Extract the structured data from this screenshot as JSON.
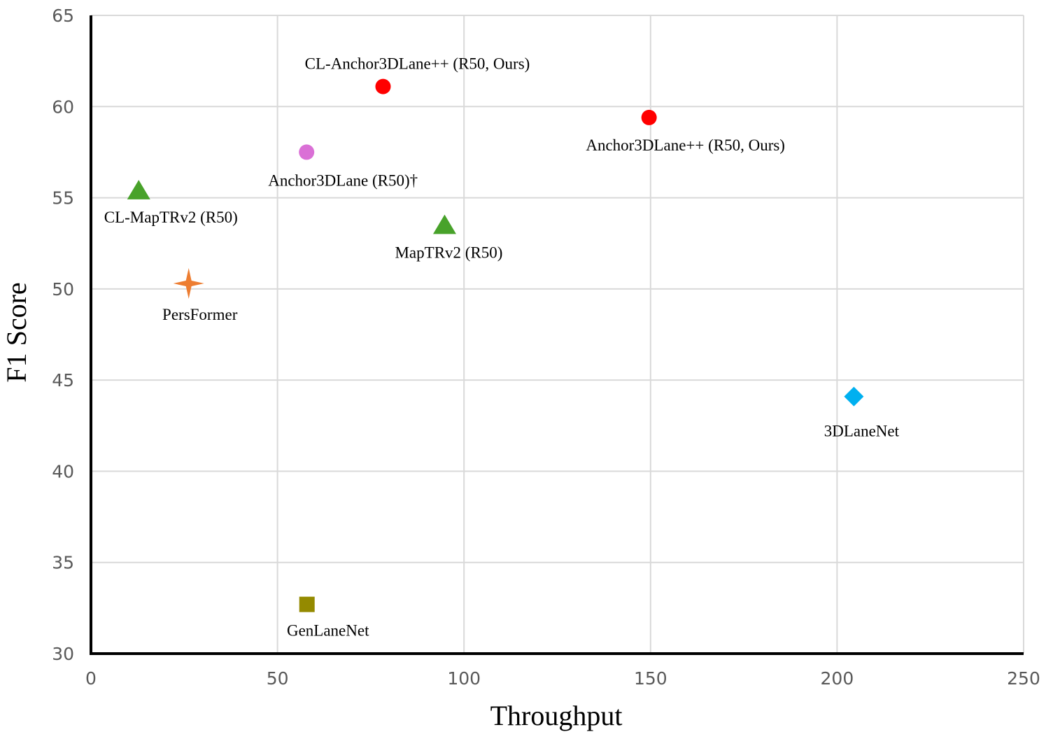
{
  "chart_data": {
    "type": "scatter",
    "title": "",
    "xlabel": "Throughput",
    "ylabel": "F1 Score",
    "xlim": [
      0,
      250
    ],
    "ylim": [
      30,
      65
    ],
    "xticks": [
      0,
      50,
      100,
      150,
      200,
      250
    ],
    "yticks": [
      30,
      35,
      40,
      45,
      50,
      55,
      60,
      65
    ],
    "grid": true,
    "points": [
      {
        "name": "CL-Anchor3DLane++ (R50, Ours)",
        "x": 78.3,
        "y": 61.1,
        "marker": "circle",
        "color": "#ff0000",
        "label_pos": "above"
      },
      {
        "name": "Anchor3DLane++ (R50, Ours)",
        "x": 149.6,
        "y": 59.4,
        "marker": "circle",
        "color": "#ff0000",
        "label_pos": "below"
      },
      {
        "name": "Anchor3DLane (R50)†",
        "x": 57.8,
        "y": 57.5,
        "marker": "circle",
        "color": "#da70d6",
        "label_pos": "below"
      },
      {
        "name": "CL-MapTRv2 (R50)",
        "x": 12.8,
        "y": 55.4,
        "marker": "triangle",
        "color": "#48a22a",
        "label_pos": "below"
      },
      {
        "name": "MapTRv2 (R50)",
        "x": 94.8,
        "y": 53.5,
        "marker": "triangle",
        "color": "#48a22a",
        "label_pos": "below"
      },
      {
        "name": "PersFormer",
        "x": 26.2,
        "y": 50.3,
        "marker": "star",
        "color": "#ed7d31",
        "label_pos": "below"
      },
      {
        "name": "3DLaneNet",
        "x": 204.5,
        "y": 44.1,
        "marker": "diamond",
        "color": "#00b0f0",
        "label_pos": "below"
      },
      {
        "name": "GenLaneNet",
        "x": 57.9,
        "y": 32.7,
        "marker": "square",
        "color": "#948a00",
        "label_pos": "below"
      }
    ]
  }
}
